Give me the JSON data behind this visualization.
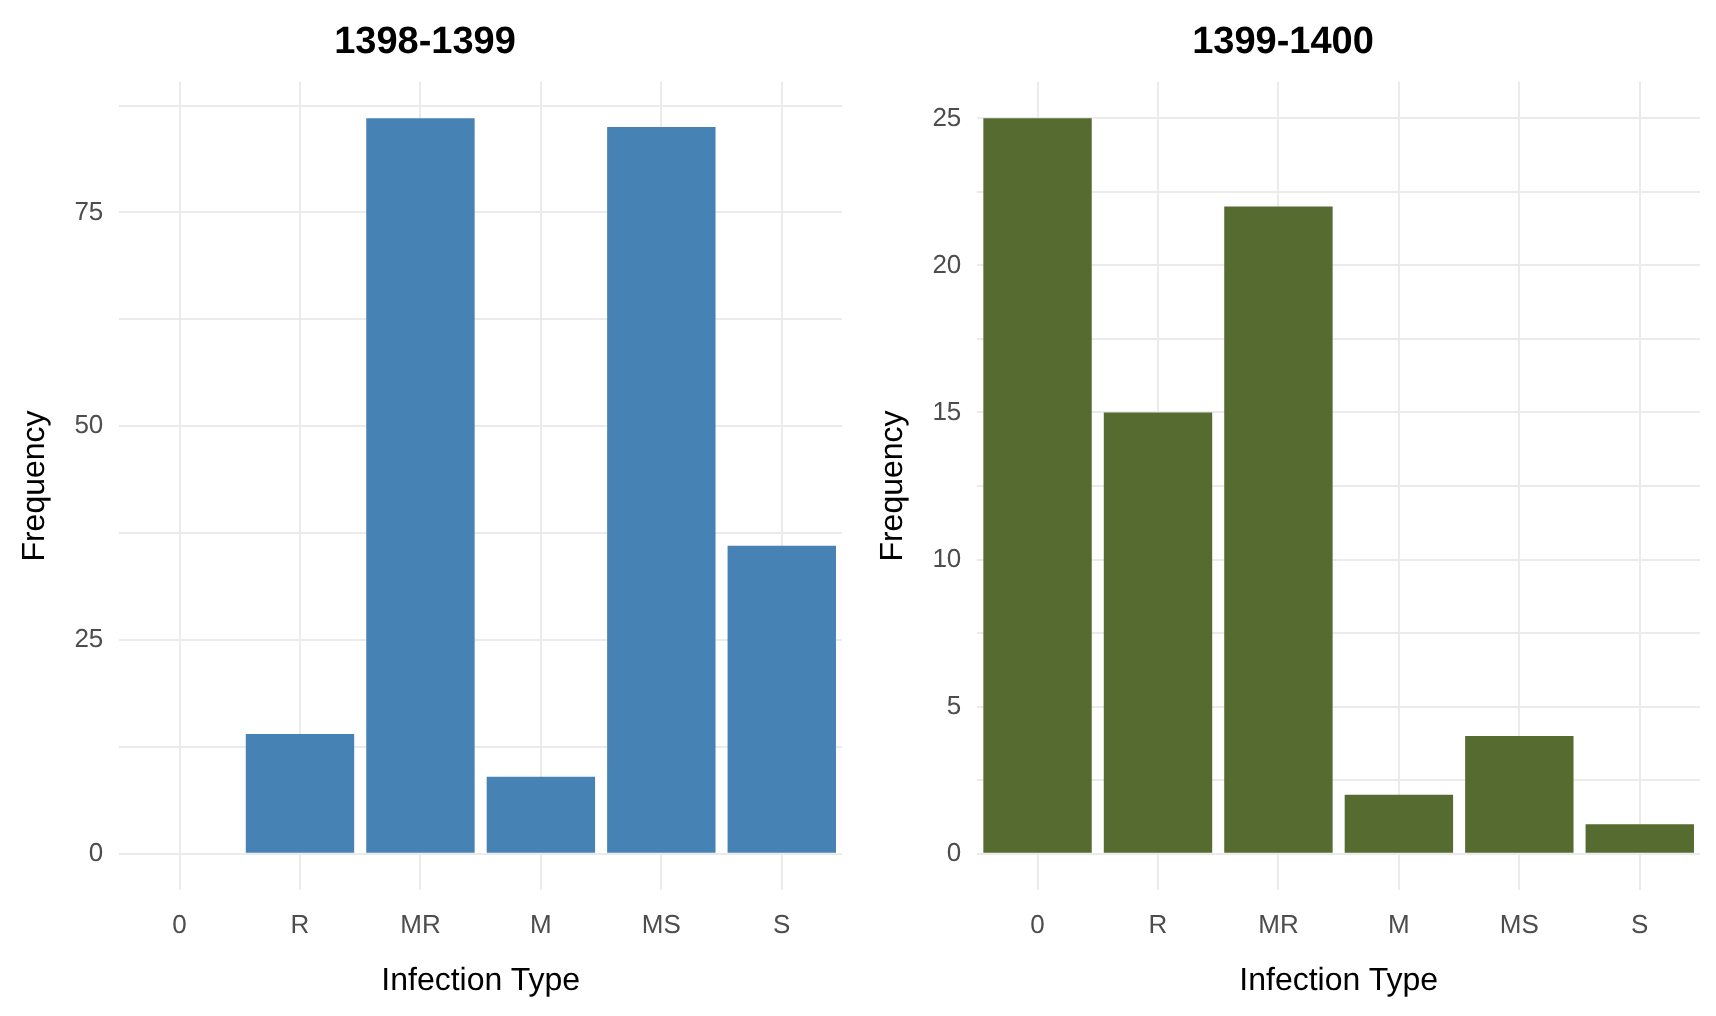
{
  "chart_data": [
    {
      "type": "bar",
      "title": "1398-1399",
      "xlabel": "Infection Type",
      "ylabel": "Frequency",
      "categories": [
        "0",
        "R",
        "MR",
        "M",
        "MS",
        "S"
      ],
      "values": [
        0,
        14,
        86,
        9,
        85,
        36
      ],
      "color": "#4682b4",
      "ylim": [
        -4.3,
        90.3
      ],
      "yticks": [
        0,
        {
          "value": 12.5,
          "label": null
        },
        25,
        {
          "value": 37.5,
          "label": null
        },
        50,
        {
          "value": 62.5,
          "label": null
        },
        75,
        {
          "value": 87.5,
          "label": null
        }
      ],
      "grid": true
    },
    {
      "type": "bar",
      "title": "1399-1400",
      "xlabel": "Infection Type",
      "ylabel": "Frequency",
      "categories": [
        "0",
        "R",
        "MR",
        "M",
        "MS",
        "S"
      ],
      "values": [
        25,
        15,
        22,
        2,
        4,
        1
      ],
      "color": "#556b2f",
      "ylim": [
        -1.25,
        26.25
      ],
      "yticks": [
        0,
        {
          "value": 2.5,
          "label": null
        },
        5,
        {
          "value": 7.5,
          "label": null
        },
        10,
        {
          "value": 12.5,
          "label": null
        },
        15,
        {
          "value": 17.5,
          "label": null
        },
        20,
        {
          "value": 22.5,
          "label": null
        },
        25
      ],
      "grid": true
    }
  ]
}
